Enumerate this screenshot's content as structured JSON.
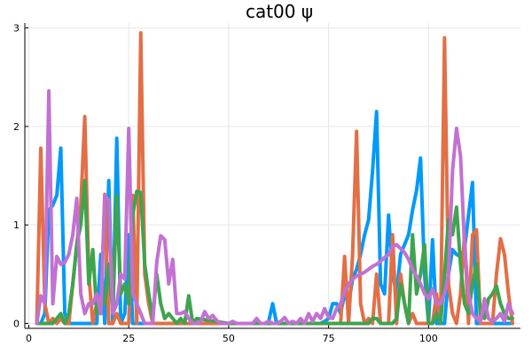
{
  "chart_data": {
    "type": "line",
    "title": "cat00 ψ",
    "xlabel": "",
    "ylabel": "",
    "xlim": [
      -1,
      123
    ],
    "ylim": [
      -0.05,
      3.05
    ],
    "x_ticks": [
      0,
      25,
      50,
      75,
      100
    ],
    "y_ticks": [
      0,
      1,
      2,
      3
    ],
    "grid": true,
    "legend": "none",
    "series": [
      {
        "color": "#009AFA",
        "x": [
          2,
          3,
          4,
          5,
          6,
          7,
          8,
          9,
          10,
          11,
          12,
          13,
          14,
          15,
          16,
          17,
          18,
          19,
          20,
          21,
          22,
          23,
          24,
          25,
          26,
          27,
          28,
          29,
          30,
          31,
          40,
          55,
          58,
          59,
          60,
          61,
          62,
          63,
          64,
          70,
          72,
          73,
          74,
          75,
          76,
          77,
          78,
          79,
          80,
          81,
          82,
          83,
          84,
          85,
          86,
          87,
          88,
          89,
          90,
          91,
          92,
          93,
          94,
          95,
          96,
          97,
          98,
          99,
          100,
          101,
          102,
          103,
          104,
          105,
          106,
          107,
          108,
          109,
          110,
          111,
          112,
          113,
          114,
          115,
          116,
          117,
          118,
          119,
          120,
          121
        ],
        "values": [
          0,
          0,
          0.1,
          1.15,
          1.2,
          1.3,
          1.78,
          0.1,
          0,
          0,
          0,
          0,
          0,
          0,
          0,
          0,
          0.7,
          0,
          1.45,
          0,
          1.88,
          0,
          0.1,
          0.9,
          0,
          0,
          0,
          0,
          0,
          0,
          0,
          0,
          0,
          0,
          0.02,
          0.2,
          0,
          0,
          0,
          0,
          0,
          0,
          0.02,
          0.05,
          0.2,
          0.2,
          0.1,
          0.3,
          0.2,
          0.45,
          0.55,
          0.7,
          0.9,
          1.05,
          1.55,
          2.15,
          0.4,
          0.3,
          1.1,
          0.5,
          0.3,
          0.7,
          0.8,
          0.9,
          1.15,
          1.35,
          1.68,
          0.5,
          0,
          0.85,
          0,
          0,
          0,
          0.5,
          0.75,
          0.7,
          0.68,
          0.75,
          1.1,
          1.43,
          0,
          0,
          0,
          0,
          0,
          0,
          0,
          0,
          0,
          0
        ]
      },
      {
        "color": "#E26F46",
        "x": [
          2,
          3,
          4,
          5,
          6,
          7,
          8,
          9,
          10,
          11,
          12,
          13,
          14,
          15,
          16,
          17,
          18,
          19,
          20,
          21,
          22,
          23,
          24,
          25,
          26,
          27,
          28,
          29,
          30,
          31,
          35,
          50,
          60,
          70,
          75,
          78,
          79,
          80,
          81,
          82,
          83,
          84,
          85,
          86,
          87,
          88,
          89,
          90,
          91,
          92,
          93,
          94,
          95,
          96,
          97,
          98,
          99,
          100,
          101,
          102,
          103,
          104,
          105,
          106,
          107,
          108,
          109,
          110,
          111,
          112,
          113,
          114,
          115,
          116,
          117,
          118,
          119,
          120,
          121
        ],
        "values": [
          0,
          1.78,
          0.2,
          0,
          0.05,
          0,
          0.05,
          0,
          0,
          0.4,
          0.8,
          1.2,
          2.1,
          0.5,
          0,
          0.2,
          0.1,
          1.31,
          0,
          0,
          0.1,
          0,
          0,
          0,
          1.3,
          0,
          2.95,
          0.5,
          0.2,
          0,
          0,
          0,
          0,
          0,
          0,
          0,
          0.68,
          0,
          0.7,
          1.95,
          0.2,
          0,
          0.05,
          0,
          0.5,
          0,
          0,
          0,
          0.9,
          0,
          0.5,
          0.2,
          0,
          0.1,
          0,
          0,
          0,
          0,
          0,
          0.3,
          0,
          2.9,
          0.4,
          0.1,
          0,
          0.3,
          0.9,
          0,
          0.9,
          0.95,
          0,
          0,
          0,
          0,
          0.5,
          0.86,
          0.7,
          0.3,
          0
        ]
      },
      {
        "color": "#3EA44E",
        "x": [
          2,
          3,
          4,
          5,
          6,
          7,
          8,
          9,
          10,
          11,
          12,
          13,
          14,
          15,
          16,
          17,
          18,
          19,
          20,
          21,
          22,
          23,
          24,
          25,
          26,
          27,
          28,
          29,
          30,
          31,
          32,
          33,
          34,
          35,
          36,
          37,
          38,
          39,
          40,
          41,
          42,
          50,
          60,
          70,
          80,
          85,
          86,
          87,
          88,
          89,
          90,
          91,
          92,
          93,
          94,
          95,
          96,
          97,
          98,
          99,
          100,
          101,
          102,
          103,
          104,
          105,
          106,
          107,
          108,
          109,
          110,
          111,
          112,
          113,
          114,
          115,
          116,
          117,
          118,
          119,
          120,
          121
        ],
        "values": [
          0,
          0,
          0,
          0,
          0,
          0.05,
          0.1,
          0,
          0.1,
          0.4,
          0.8,
          1.0,
          1.45,
          0.4,
          0.75,
          0.1,
          0.2,
          0.2,
          0.6,
          0.1,
          1.3,
          0.3,
          0.4,
          0.2,
          1.1,
          1.34,
          1.33,
          0.6,
          0.3,
          0.05,
          0.5,
          0.2,
          0.05,
          0.1,
          0.05,
          0,
          0.05,
          0,
          0.28,
          0,
          0.05,
          0,
          0,
          0,
          0,
          0,
          0.05,
          0.05,
          0,
          0,
          0,
          0,
          0.05,
          0.4,
          0.2,
          0,
          0.9,
          0.3,
          0.5,
          0.8,
          0,
          0,
          0.1,
          0,
          0.5,
          1.05,
          0.9,
          1.18,
          0.6,
          0.2,
          0.1,
          0.4,
          0.6,
          0.1,
          0.05,
          0.25,
          0.3,
          0.38,
          0.2,
          0.1,
          0.05,
          0.05
        ]
      },
      {
        "color": "#C271D2",
        "x": [
          2,
          3,
          4,
          5,
          6,
          7,
          8,
          9,
          10,
          11,
          12,
          13,
          14,
          15,
          16,
          17,
          18,
          19,
          20,
          21,
          22,
          23,
          24,
          25,
          26,
          27,
          28,
          29,
          30,
          31,
          32,
          33,
          34,
          35,
          36,
          37,
          38,
          39,
          40,
          41,
          42,
          43,
          44,
          45,
          46,
          47,
          48,
          49,
          50,
          51,
          52,
          53,
          54,
          55,
          56,
          57,
          58,
          59,
          60,
          61,
          62,
          63,
          64,
          65,
          66,
          67,
          68,
          69,
          70,
          71,
          72,
          73,
          74,
          75,
          76,
          77,
          78,
          79,
          80,
          81,
          82,
          83,
          84,
          85,
          86,
          87,
          88,
          89,
          90,
          91,
          92,
          93,
          94,
          95,
          96,
          97,
          98,
          99,
          100,
          101,
          102,
          103,
          104,
          105,
          106,
          107,
          108,
          109,
          110,
          111,
          112,
          113,
          114,
          115,
          116,
          117,
          118,
          119,
          120,
          121
        ],
        "values": [
          0,
          0.28,
          0.2,
          2.36,
          0.2,
          0.68,
          0.6,
          0.62,
          0.7,
          0.9,
          1.27,
          0.3,
          0.1,
          0.2,
          0.2,
          0.3,
          0.1,
          1.3,
          1.25,
          0.1,
          0.2,
          0.5,
          0.45,
          1.98,
          0.3,
          0.2,
          0.1,
          0,
          0,
          0,
          0.62,
          0.89,
          0.85,
          0.4,
          0.65,
          0.1,
          0.1,
          0.12,
          0.05,
          0,
          0,
          0.02,
          0.12,
          0.05,
          0.08,
          0.03,
          0,
          0,
          0,
          0.02,
          0,
          0,
          0,
          0,
          0,
          0.05,
          0,
          0,
          0.02,
          0,
          0,
          0.02,
          0.06,
          0,
          0.02,
          0,
          0.05,
          0,
          0.1,
          0.02,
          0.1,
          0.05,
          0.15,
          0.06,
          0.05,
          0.15,
          0.2,
          0.32,
          0.4,
          0.45,
          0.48,
          0.5,
          0.52,
          0.55,
          0.58,
          0.6,
          0.63,
          0.67,
          0.7,
          0.78,
          0.8,
          0.76,
          0.72,
          0.65,
          0.55,
          0.48,
          0.4,
          0.3,
          0.25,
          0.35,
          0.2,
          0.2,
          0.3,
          0.5,
          1.55,
          1.98,
          1.7,
          0.8,
          0.3,
          0.1,
          0.05,
          0.02,
          0.25,
          0.05,
          0.02,
          0.05,
          0.1,
          0.02,
          0.2,
          0.1
        ]
      }
    ]
  }
}
